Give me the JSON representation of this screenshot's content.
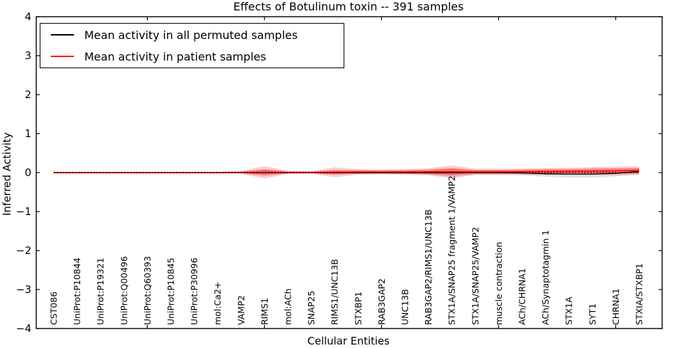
{
  "chart_data": {
    "type": "line",
    "title": "Effects of Botulinum toxin -- 391 samples",
    "xlabel": "Cellular Entities",
    "ylabel": "Inferred Activity",
    "ylim": [
      -4,
      4
    ],
    "yticks": [
      4,
      3,
      2,
      1,
      0,
      -1,
      -2,
      -3,
      -4
    ],
    "x_tick_category_indices": [
      4,
      9,
      14,
      19,
      24
    ],
    "grid": false,
    "legend_position": "upper left",
    "zero_reference_line": {
      "y": 0,
      "style": "dotted",
      "color": "#000000"
    },
    "categories": [
      "CST086",
      "UniProt:P10844",
      "UniProt:P19321",
      "UniProt:Q00496",
      "UniProt:Q60393",
      "UniProt:P10845",
      "UniProt:P30996",
      "mol:Ca2+",
      "VAMP2",
      "RIMS1",
      "mol:ACh",
      "SNAP25",
      "RIMS1/UNC13B",
      "STXBP1",
      "RAB3GAP2",
      "UNC13B",
      "RAB3GAP2/RIMS1/UNC13B",
      "STX1A/SNAP25 fragment 1/VAMP2",
      "STX1A/SNAP25/VAMP2",
      "muscle contraction",
      "ACh/CHRNA1",
      "ACh/Synaptotagmin 1",
      "STX1A",
      "SYT1",
      "CHRNA1",
      "STXIA/STXBP1"
    ],
    "series": [
      {
        "name": "Mean activity in all permuted samples",
        "color": "#000000",
        "style": "solid",
        "values": [
          0,
          0,
          0,
          0,
          0,
          0,
          0,
          0,
          0,
          0,
          0,
          0,
          0,
          0,
          0,
          0,
          0,
          0,
          0,
          0,
          -0.01,
          -0.03,
          -0.04,
          -0.04,
          -0.02,
          0.03
        ]
      },
      {
        "name": "Mean activity in patient samples",
        "color": "#ff0000",
        "style": "solid",
        "values": [
          0,
          0,
          0,
          0,
          0,
          0,
          0,
          0,
          0.005,
          0.01,
          0.005,
          0.005,
          0.01,
          0.015,
          0.015,
          0.015,
          0.02,
          0.02,
          0.02,
          0.02,
          0.025,
          0.03,
          0.035,
          0.04,
          0.045,
          0.05
        ]
      }
    ],
    "bands": [
      {
        "name": "permuted-samples-spread",
        "series": 0,
        "color": "#000000",
        "opacity": 0.1,
        "halfwidths": [
          0.015,
          0.015,
          0.015,
          0.015,
          0.015,
          0.015,
          0.015,
          0.015,
          0.02,
          0.09,
          0.025,
          0.02,
          0.06,
          0.035,
          0.03,
          0.035,
          0.05,
          0.11,
          0.05,
          0.05,
          0.06,
          0.08,
          0.09,
          0.09,
          0.08,
          0.07
        ]
      },
      {
        "name": "patient-samples-spread-outer",
        "series": 1,
        "color": "#ff0000",
        "opacity": 0.2,
        "halfwidths": [
          0.025,
          0.025,
          0.025,
          0.025,
          0.025,
          0.025,
          0.025,
          0.025,
          0.035,
          0.16,
          0.04,
          0.035,
          0.125,
          0.07,
          0.06,
          0.07,
          0.09,
          0.16,
          0.08,
          0.08,
          0.08,
          0.09,
          0.09,
          0.1,
          0.11,
          0.11
        ]
      },
      {
        "name": "patient-samples-spread-inner",
        "series": 1,
        "color": "#ff0000",
        "opacity": 0.38,
        "halfwidths": [
          0.015,
          0.015,
          0.015,
          0.015,
          0.015,
          0.015,
          0.015,
          0.015,
          0.02,
          0.07,
          0.025,
          0.02,
          0.055,
          0.045,
          0.04,
          0.045,
          0.055,
          0.09,
          0.05,
          0.05,
          0.05,
          0.055,
          0.055,
          0.06,
          0.065,
          0.065
        ]
      }
    ]
  }
}
